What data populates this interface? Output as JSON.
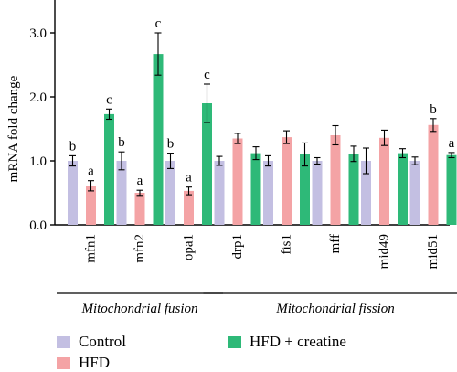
{
  "chart_data": {
    "type": "bar",
    "ylabel": "mRNA fold change",
    "ylim": [
      0,
      3.3
    ],
    "yticks": [
      "0.0",
      "1.0",
      "2.0",
      "3.0"
    ],
    "categories": [
      "mfn1",
      "mfn2",
      "opa1",
      "drp1",
      "fis1",
      "mff",
      "mid49",
      "mid51"
    ],
    "series": [
      {
        "name": "Control",
        "color": "#c3bfe2",
        "values": [
          1.0,
          1.0,
          1.0,
          1.0,
          1.0,
          1.0,
          1.0,
          1.0
        ],
        "errors": [
          0.08,
          0.14,
          0.12,
          0.07,
          0.08,
          0.05,
          0.2,
          0.06
        ],
        "letters": [
          "b",
          "b",
          "b",
          "",
          "",
          "",
          "",
          ""
        ]
      },
      {
        "name": "HFD",
        "color": "#f4a3a5",
        "values": [
          0.61,
          0.5,
          0.53,
          1.35,
          1.37,
          1.4,
          1.36,
          1.56
        ],
        "errors": [
          0.08,
          0.04,
          0.06,
          0.08,
          0.1,
          0.15,
          0.12,
          0.1
        ],
        "letters": [
          "a",
          "a",
          "a",
          "",
          "",
          "",
          "",
          "b"
        ]
      },
      {
        "name": "HFD + creatine",
        "color": "#2eb978",
        "values": [
          1.73,
          2.67,
          1.9,
          1.12,
          1.1,
          1.11,
          1.12,
          1.09
        ],
        "errors": [
          0.08,
          0.33,
          0.3,
          0.1,
          0.18,
          0.12,
          0.07,
          0.04
        ],
        "letters": [
          "c",
          "c",
          "c",
          "",
          "",
          "",
          "",
          "a"
        ]
      }
    ],
    "groups": [
      {
        "label": "Mitochondrial fusion",
        "from": 0,
        "to": 2
      },
      {
        "label": "Mitochondrial fission",
        "from": 3,
        "to": 7
      }
    ],
    "legend": {
      "position": "bottom",
      "items": [
        "Control",
        "HFD",
        "HFD + creatine"
      ]
    }
  }
}
